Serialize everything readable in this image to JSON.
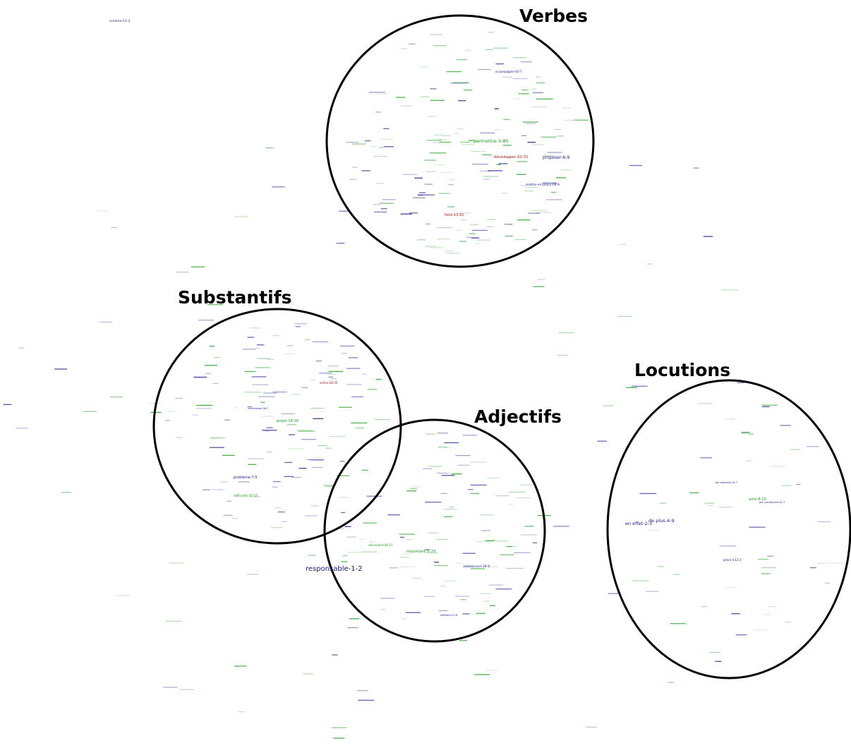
{
  "palette": {
    "green": "#1a9e1a",
    "blue": "#1a1a8c",
    "red": "#b01515",
    "faint_green": "#9fd89f",
    "faint_blue": "#9a9ad2",
    "outline": "#000000"
  },
  "clusters": [
    {
      "id": "verbes",
      "title": "Verbes"
    },
    {
      "id": "substantifs",
      "title": "Substantifs"
    },
    {
      "id": "adjectifs",
      "title": "Adjectifs"
    },
    {
      "id": "locutions",
      "title": "Locutions"
    }
  ],
  "words": [
    {
      "text": "permettre-3-85",
      "color": "green"
    },
    {
      "text": "proposer-6-9",
      "color": "blue"
    },
    {
      "text": "développer-10-31",
      "color": "red"
    },
    {
      "text": "accompagner-05-7",
      "color": "blue"
    },
    {
      "text": "faire-10-61",
      "color": "red"
    },
    {
      "text": "mettre-en-place-09-6",
      "color": "blue"
    },
    {
      "text": "scolaire-11-3",
      "color": "blue"
    },
    {
      "text": "problème-7-5",
      "color": "blue"
    },
    {
      "text": "difficulté-32-15",
      "color": "green"
    },
    {
      "text": "projet-18-16",
      "color": "green"
    },
    {
      "text": "information-06-7",
      "color": "blue"
    },
    {
      "text": "action-28-35",
      "color": "red"
    },
    {
      "text": "responsable-1-2",
      "color": "blue"
    },
    {
      "text": "important-5-29",
      "color": "green"
    },
    {
      "text": "intéressant-28-8",
      "color": "blue"
    },
    {
      "text": "différent-23-6",
      "color": "blue"
    },
    {
      "text": "nécessaire-46-13",
      "color": "green"
    },
    {
      "text": "en effet-2-3",
      "color": "blue"
    },
    {
      "text": "de plus-4-9",
      "color": "blue"
    },
    {
      "text": "ainsi-8-10",
      "color": "green"
    },
    {
      "text": "grâce à-12-2",
      "color": "blue"
    },
    {
      "text": "par exemple-34-7",
      "color": "blue"
    },
    {
      "text": "par conséquent-61-7",
      "color": "blue"
    }
  ]
}
